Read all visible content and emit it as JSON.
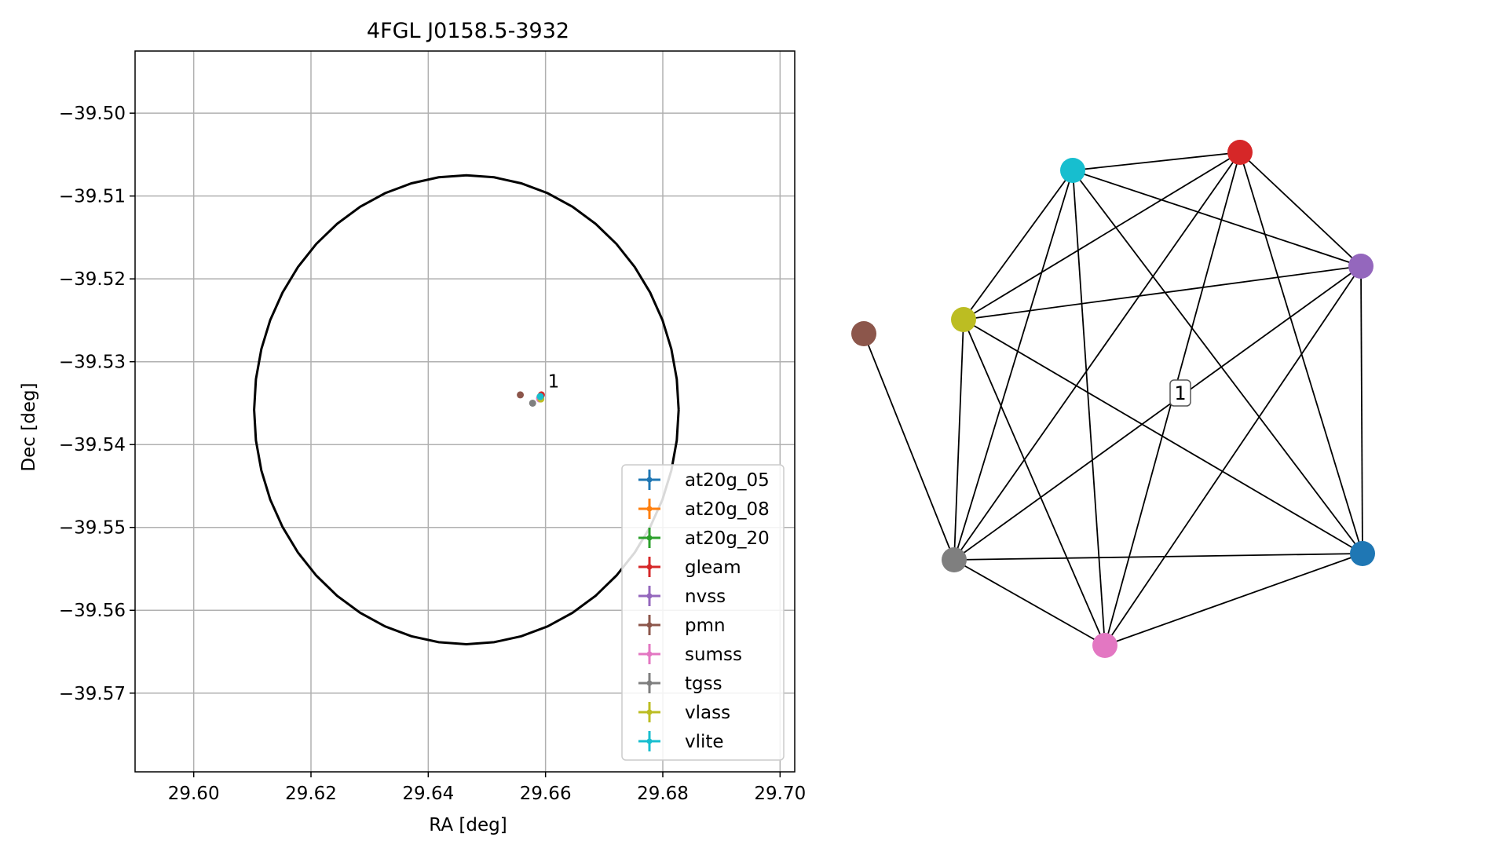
{
  "chart_data": [
    {
      "type": "scatter",
      "title": "4FGL J0158.5-3932",
      "xlabel": "RA [deg]",
      "ylabel": "Dec [deg]",
      "xlim": [
        29.59,
        29.7025
      ],
      "ylim": [
        -39.5795,
        -39.4925
      ],
      "xticks": [
        29.6,
        29.62,
        29.64,
        29.66,
        29.68,
        29.7
      ],
      "xtick_labels": [
        "29.60",
        "29.62",
        "29.64",
        "29.66",
        "29.68",
        "29.70"
      ],
      "yticks": [
        -39.5,
        -39.51,
        -39.52,
        -39.53,
        -39.54,
        -39.55,
        -39.56,
        -39.57
      ],
      "ytick_labels": [
        "−39.50",
        "−39.51",
        "−39.52",
        "−39.53",
        "−39.54",
        "−39.55",
        "−39.56",
        "−39.57"
      ],
      "grid": true,
      "legend_position": "lower-right",
      "ellipse": {
        "center": [
          29.6465,
          -39.5358
        ],
        "semi_axis_ra": 0.0362,
        "semi_axis_dec": 0.0283,
        "color": "#000000"
      },
      "annotations": [
        {
          "text": "1",
          "x": 29.66,
          "y": -39.5334
        }
      ],
      "series": [
        {
          "name": "at20g_05",
          "color": "#1f77b4",
          "x": 29.6592,
          "y": -39.5342
        },
        {
          "name": "at20g_08",
          "color": "#ff7f0e",
          "x": 29.6591,
          "y": -39.5342
        },
        {
          "name": "at20g_20",
          "color": "#2ca02c",
          "x": 29.6591,
          "y": -39.5343
        },
        {
          "name": "gleam",
          "color": "#d62728",
          "x": 29.6593,
          "y": -39.534
        },
        {
          "name": "nvss",
          "color": "#9467bd",
          "x": 29.659,
          "y": -39.5344
        },
        {
          "name": "pmn",
          "color": "#8c564b",
          "x": 29.6557,
          "y": -39.534
        },
        {
          "name": "sumss",
          "color": "#e377c2",
          "x": 29.659,
          "y": -39.5345
        },
        {
          "name": "tgss",
          "color": "#7f7f7f",
          "x": 29.6578,
          "y": -39.535
        },
        {
          "name": "vlass",
          "color": "#bcbd22",
          "x": 29.6592,
          "y": -39.5345
        },
        {
          "name": "vlite",
          "color": "#17becf",
          "x": 29.6591,
          "y": -39.5342
        }
      ]
    },
    {
      "type": "network",
      "label": "1",
      "nodes": [
        {
          "id": "at20g_05",
          "color": "#1f77b4"
        },
        {
          "id": "gleam",
          "color": "#d62728"
        },
        {
          "id": "nvss",
          "color": "#9467bd"
        },
        {
          "id": "pmn",
          "color": "#8c564b"
        },
        {
          "id": "sumss",
          "color": "#e377c2"
        },
        {
          "id": "tgss",
          "color": "#7f7f7f"
        },
        {
          "id": "vlass",
          "color": "#bcbd22"
        },
        {
          "id": "vlite",
          "color": "#17becf"
        }
      ],
      "edges": [
        [
          "vlite",
          "gleam"
        ],
        [
          "vlite",
          "nvss"
        ],
        [
          "vlite",
          "vlass"
        ],
        [
          "vlite",
          "tgss"
        ],
        [
          "vlite",
          "sumss"
        ],
        [
          "vlite",
          "at20g_05"
        ],
        [
          "gleam",
          "vlass"
        ],
        [
          "gleam",
          "nvss"
        ],
        [
          "gleam",
          "at20g_05"
        ],
        [
          "gleam",
          "tgss"
        ],
        [
          "gleam",
          "sumss"
        ],
        [
          "nvss",
          "vlass"
        ],
        [
          "nvss",
          "at20g_05"
        ],
        [
          "nvss",
          "tgss"
        ],
        [
          "nvss",
          "sumss"
        ],
        [
          "vlass",
          "tgss"
        ],
        [
          "vlass",
          "sumss"
        ],
        [
          "vlass",
          "at20g_05"
        ],
        [
          "tgss",
          "at20g_05"
        ],
        [
          "tgss",
          "sumss"
        ],
        [
          "sumss",
          "at20g_05"
        ],
        [
          "pmn",
          "tgss"
        ]
      ]
    }
  ]
}
